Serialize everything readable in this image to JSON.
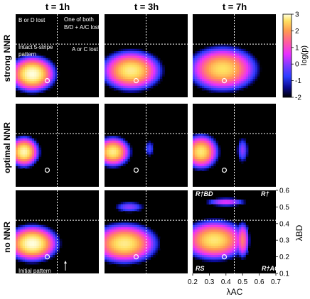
{
  "chart_data": {
    "type": "heatmap",
    "columns": [
      "t = 1h",
      "t = 3h",
      "t = 7h"
    ],
    "rows": [
      "strong NNR",
      "optimal NNR",
      "no NNR"
    ],
    "xlabel": "λAC",
    "ylabel": "λBD",
    "xticks": [
      "0.2",
      "0.3",
      "0.4",
      "0.5",
      "0.6",
      "0.7"
    ],
    "yticks": [
      "0.1",
      "0.2",
      "0.3",
      "0.4",
      "0.5",
      "0.6"
    ],
    "xlim": [
      0.2,
      0.7
    ],
    "ylim": [
      0.1,
      0.6
    ],
    "threshold_ac": 0.45,
    "threshold_bd": 0.42,
    "initial_point": [
      0.39,
      0.2
    ],
    "colorbar": {
      "label": "log(p)",
      "ticks": [
        "3",
        "2",
        "1",
        "0",
        "-1",
        "-2"
      ],
      "range": [
        -2,
        3
      ],
      "colors": [
        "#000000",
        "#0a0a90",
        "#2b3cff",
        "#7a3cff",
        "#e830ff",
        "#ff5aa0",
        "#ff9a50",
        "#ffe060",
        "#ffffe0"
      ]
    },
    "region_labels": {
      "bd_lost": "B or D lost",
      "both_lost_1": "One of both",
      "both_lost_2": "B/D + A/C lost",
      "intact_1": "Intact 5-stripe",
      "intact_2": "pattern",
      "ac_lost": "A or C lost",
      "initial_pattern": "Initial pattern"
    },
    "corner_labels": [
      "R†BD",
      "R†",
      "RS",
      "R†AC"
    ],
    "panels": [
      {
        "row": 0,
        "col": 0,
        "blobs": [
          {
            "ac": 0.3,
            "bd": 0.24,
            "sx": 0.09,
            "sy": 0.07,
            "peak": 3.0
          }
        ]
      },
      {
        "row": 0,
        "col": 1,
        "blobs": [
          {
            "ac": 0.36,
            "bd": 0.26,
            "sx": 0.12,
            "sy": 0.08,
            "peak": 2.6
          }
        ]
      },
      {
        "row": 0,
        "col": 2,
        "blobs": [
          {
            "ac": 0.38,
            "bd": 0.27,
            "sx": 0.14,
            "sy": 0.09,
            "peak": 2.4
          }
        ]
      },
      {
        "row": 1,
        "col": 0,
        "blobs": [
          {
            "ac": 0.25,
            "bd": 0.31,
            "sx": 0.06,
            "sy": 0.06,
            "peak": 2.8
          }
        ]
      },
      {
        "row": 1,
        "col": 1,
        "blobs": [
          {
            "ac": 0.25,
            "bd": 0.31,
            "sx": 0.07,
            "sy": 0.06,
            "peak": 2.6
          },
          {
            "ac": 0.47,
            "bd": 0.33,
            "sx": 0.03,
            "sy": 0.05,
            "peak": -0.5
          }
        ]
      },
      {
        "row": 1,
        "col": 2,
        "blobs": [
          {
            "ac": 0.25,
            "bd": 0.31,
            "sx": 0.07,
            "sy": 0.07,
            "peak": 2.5
          },
          {
            "ac": 0.5,
            "bd": 0.32,
            "sx": 0.03,
            "sy": 0.07,
            "peak": 0.0
          }
        ]
      },
      {
        "row": 2,
        "col": 0,
        "blobs": [
          {
            "ac": 0.3,
            "bd": 0.28,
            "sx": 0.1,
            "sy": 0.07,
            "peak": 3.0
          }
        ]
      },
      {
        "row": 2,
        "col": 1,
        "blobs": [
          {
            "ac": 0.32,
            "bd": 0.28,
            "sx": 0.13,
            "sy": 0.08,
            "peak": 2.6
          },
          {
            "ac": 0.35,
            "bd": 0.5,
            "sx": 0.08,
            "sy": 0.03,
            "peak": 0.0
          }
        ]
      },
      {
        "row": 2,
        "col": 2,
        "blobs": [
          {
            "ac": 0.33,
            "bd": 0.3,
            "sx": 0.13,
            "sy": 0.08,
            "peak": 2.5
          },
          {
            "ac": 0.4,
            "bd": 0.53,
            "sx": 0.1,
            "sy": 0.02,
            "peak": 0.6
          },
          {
            "ac": 0.5,
            "bd": 0.3,
            "sx": 0.03,
            "sy": 0.08,
            "peak": 1.5
          }
        ]
      }
    ]
  }
}
